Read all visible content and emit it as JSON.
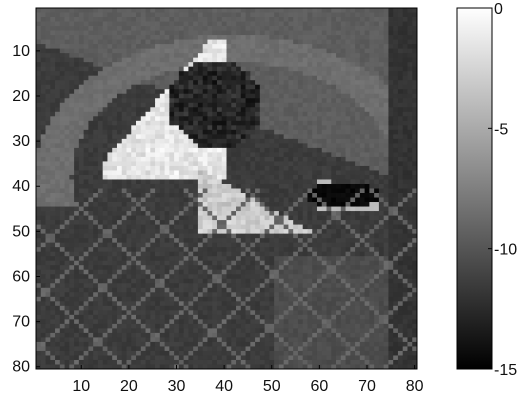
{
  "chart_data": [
    {
      "type": "heatmap",
      "title": "",
      "xlabel": "",
      "ylabel": "",
      "xlim": [
        0.5,
        80.5
      ],
      "ylim": [
        80.5,
        0.5
      ],
      "x_tick_values": [
        10,
        20,
        30,
        40,
        50,
        60,
        70,
        80
      ],
      "x_tick_labels": [
        "10",
        "20",
        "30",
        "40",
        "50",
        "60",
        "70",
        "80"
      ],
      "y_tick_values": [
        10,
        20,
        30,
        40,
        50,
        60,
        70,
        80
      ],
      "y_tick_labels": [
        "10",
        "20",
        "30",
        "40",
        "50",
        "60",
        "70",
        "80"
      ],
      "colormap": "gray",
      "grid": false,
      "description_regions": [
        {
          "name": "background",
          "value": -11.5
        },
        {
          "name": "upper-band",
          "value": -9.5
        },
        {
          "name": "outer-arc",
          "value": -8.5
        },
        {
          "name": "bright-core",
          "value": -1.5
        },
        {
          "name": "dark-pocket",
          "value": -14.0
        },
        {
          "name": "lower-right",
          "value": -10.5
        }
      ]
    },
    {
      "type": "colorbar",
      "clim": [
        -15,
        0
      ],
      "tick_values": [
        0,
        -5,
        -10,
        -15
      ],
      "tick_labels": [
        "0",
        "-5",
        "-10",
        "-15"
      ],
      "colormap": "gray"
    }
  ]
}
